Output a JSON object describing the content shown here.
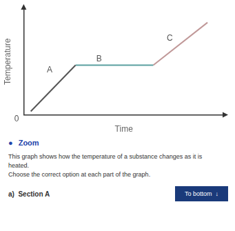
{
  "chart_data": {
    "type": "line",
    "xlabel": "Time",
    "ylabel": "Temperature",
    "xlim": [
      0,
      8.5
    ],
    "ylim": [
      0,
      6.0
    ],
    "xticks": [],
    "yticks": [],
    "tick_labels": false,
    "grid": false,
    "legend": false,
    "series": [
      {
        "name": "A",
        "color": "#555555",
        "x": [
          0.3,
          2.2
        ],
        "values": [
          0.2,
          2.8
        ]
      },
      {
        "name": "B",
        "color": "#5aa0a0",
        "x": [
          2.2,
          5.5
        ],
        "values": [
          2.8,
          2.8
        ]
      },
      {
        "name": "C",
        "color": "#c09898",
        "x": [
          5.5,
          7.8
        ],
        "values": [
          2.8,
          5.2
        ]
      }
    ],
    "annotations": [
      {
        "text": "A",
        "x": 1.1,
        "y": 2.5
      },
      {
        "text": "B",
        "x": 3.2,
        "y": 3.15
      },
      {
        "text": "C",
        "x": 6.2,
        "y": 4.3
      },
      {
        "text": "0",
        "x": -0.3,
        "y": -0.25
      },
      {
        "text": "●",
        "color": "#2244aa"
      },
      {
        "text": "Zoom",
        "color": "#2244aa"
      },
      {
        "text": "This graph shows how the temperature of a substance changes as it is",
        "color": "#333333"
      },
      {
        "text": "heated.",
        "color": "#333333"
      },
      {
        "text": "Choose the correct option at each part of the graph.",
        "color": "#333333"
      },
      {
        "text": "a)  Section A",
        "color": "#333333"
      },
      {
        "text": "To bottom  ↓",
        "color": "#1a3a7a"
      }
    ]
  }
}
